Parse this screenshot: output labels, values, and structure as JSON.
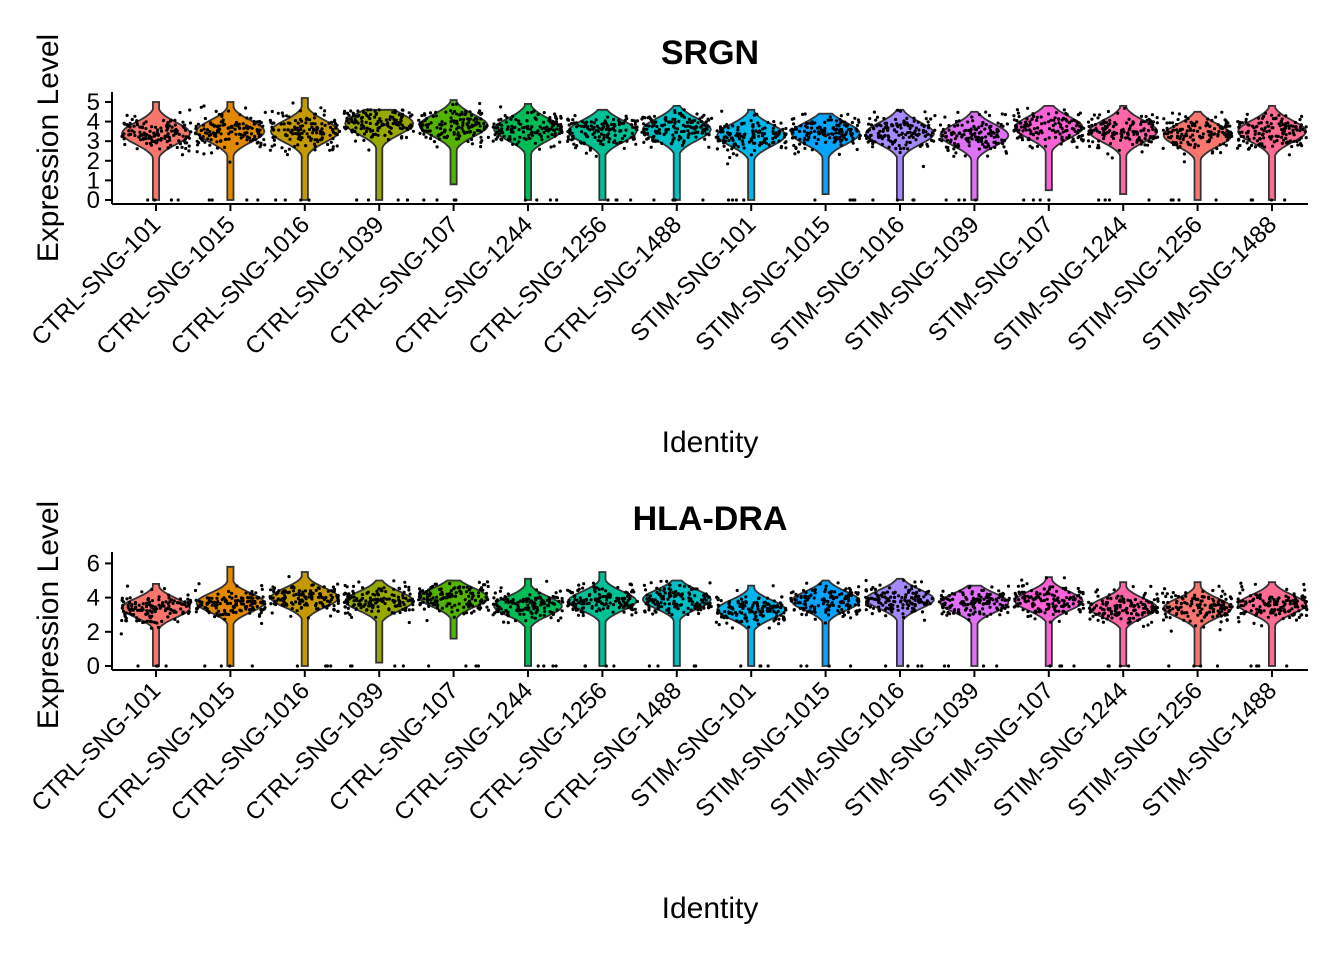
{
  "chart_data": [
    {
      "type": "violin",
      "title": "SRGN",
      "xlabel": "Identity",
      "ylabel": "Expression Level",
      "ylim": [
        0,
        5.1
      ],
      "yticks": [
        0,
        1,
        2,
        3,
        4,
        5
      ],
      "grid": false,
      "legend": "none",
      "categories": [
        "CTRL-SNG-101",
        "CTRL-SNG-1015",
        "CTRL-SNG-1016",
        "CTRL-SNG-1039",
        "CTRL-SNG-107",
        "CTRL-SNG-1244",
        "CTRL-SNG-1256",
        "CTRL-SNG-1488",
        "STIM-SNG-101",
        "STIM-SNG-1015",
        "STIM-SNG-1016",
        "STIM-SNG-1039",
        "STIM-SNG-107",
        "STIM-SNG-1244",
        "STIM-SNG-1256",
        "STIM-SNG-1488"
      ],
      "colors": [
        "#F8766D",
        "#E38900",
        "#C49A00",
        "#99A800",
        "#53B400",
        "#00BC56",
        "#00C094",
        "#00BFC4",
        "#00B6EB",
        "#06A4FF",
        "#A58AFF",
        "#DF70F8",
        "#FB61D7",
        "#FF66A8",
        "#F8766D",
        "#FF6C91"
      ],
      "medians": [
        3.4,
        3.5,
        3.5,
        3.9,
        3.8,
        3.6,
        3.5,
        3.6,
        3.3,
        3.4,
        3.4,
        3.3,
        3.7,
        3.5,
        3.3,
        3.5
      ],
      "max": [
        5.0,
        5.0,
        5.2,
        4.6,
        5.1,
        4.9,
        4.6,
        4.8,
        4.6,
        4.4,
        4.6,
        4.5,
        4.8,
        4.8,
        4.5,
        4.8
      ],
      "min": [
        0,
        0,
        0,
        0,
        0.8,
        0,
        0,
        0,
        0,
        0.3,
        0,
        0,
        0.5,
        0.3,
        0,
        0
      ]
    },
    {
      "type": "violin",
      "title": "HLA-DRA",
      "xlabel": "Identity",
      "ylabel": "Expression Level",
      "ylim": [
        0,
        6.2
      ],
      "yticks": [
        0,
        2,
        4,
        6
      ],
      "grid": false,
      "legend": "none",
      "categories": [
        "CTRL-SNG-101",
        "CTRL-SNG-1015",
        "CTRL-SNG-1016",
        "CTRL-SNG-1039",
        "CTRL-SNG-107",
        "CTRL-SNG-1244",
        "CTRL-SNG-1256",
        "CTRL-SNG-1488",
        "STIM-SNG-101",
        "STIM-SNG-1015",
        "STIM-SNG-1016",
        "STIM-SNG-1039",
        "STIM-SNG-107",
        "STIM-SNG-1244",
        "STIM-SNG-1256",
        "STIM-SNG-1488"
      ],
      "colors": [
        "#F8766D",
        "#E38900",
        "#C49A00",
        "#99A800",
        "#53B400",
        "#00BC56",
        "#00C094",
        "#00BFC4",
        "#00B6EB",
        "#06A4FF",
        "#A58AFF",
        "#DF70F8",
        "#FB61D7",
        "#FF66A8",
        "#F8766D",
        "#FF6C91"
      ],
      "medians": [
        3.4,
        3.7,
        4.0,
        3.8,
        4.0,
        3.5,
        3.8,
        3.9,
        3.3,
        3.8,
        3.9,
        3.7,
        3.8,
        3.4,
        3.4,
        3.6
      ],
      "max": [
        4.8,
        5.8,
        5.5,
        5.0,
        5.0,
        5.1,
        5.5,
        5.0,
        4.7,
        5.0,
        5.1,
        4.7,
        5.2,
        4.9,
        4.9,
        4.9
      ],
      "min": [
        0,
        0,
        0,
        0.2,
        1.6,
        0,
        0,
        0,
        0,
        0,
        0,
        0,
        0,
        0,
        0,
        0
      ]
    }
  ]
}
